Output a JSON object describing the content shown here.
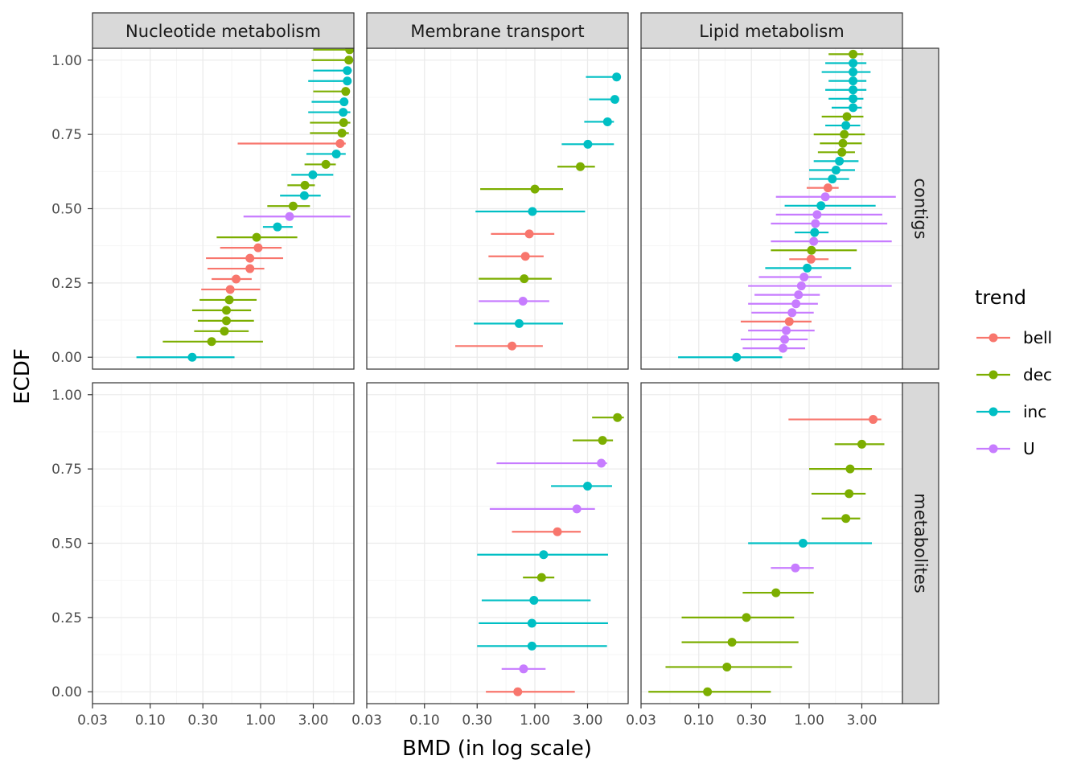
{
  "colors": {
    "bell": "#F8766D",
    "dec": "#7CAE00",
    "inc": "#00BFC4",
    "U": "#C77CFF",
    "strip_fill": "#D9D9D9",
    "grid_major": "#EBEBEB",
    "grid_minor": "#F5F5F5",
    "panel_border": "#333333"
  },
  "chart_data": {
    "type": "scatter",
    "subtype": "point-range faceted grid",
    "xlabel": "BMD (in log scale)",
    "ylabel": "ECDF",
    "x_scale": "log10",
    "xlim": [
      0.03,
      7
    ],
    "ylim": [
      -0.04,
      1.04
    ],
    "x_ticks": [
      0.03,
      0.1,
      0.3,
      1,
      3
    ],
    "x_tick_labels": [
      "0.03",
      "0.10",
      "0.30",
      "1.00",
      "3.00"
    ],
    "y_ticks": [
      0,
      0.25,
      0.5,
      0.75,
      1
    ],
    "y_tick_labels": [
      "0.00",
      "0.25",
      "0.50",
      "0.75",
      "1.00"
    ],
    "grid": true,
    "legend": {
      "title": "trend",
      "position": "right",
      "entries": [
        "bell",
        "dec",
        "inc",
        "U"
      ]
    },
    "columns": [
      "Nucleotide metabolism",
      "Membrane transport",
      "Lipid metabolism"
    ],
    "rows": [
      "contigs",
      "metabolites"
    ],
    "panels": [
      {
        "column": "Nucleotide metabolism",
        "row": "contigs",
        "points": [
          {
            "y": 0.0,
            "x": 0.24,
            "lo": 0.075,
            "hi": 0.58,
            "trend": "inc"
          },
          {
            "y": 0.0526,
            "x": 0.36,
            "lo": 0.13,
            "hi": 1.05,
            "trend": "dec"
          },
          {
            "y": 0.0877,
            "x": 0.47,
            "lo": 0.25,
            "hi": 0.78,
            "trend": "dec"
          },
          {
            "y": 0.1228,
            "x": 0.49,
            "lo": 0.27,
            "hi": 0.87,
            "trend": "dec"
          },
          {
            "y": 0.1579,
            "x": 0.49,
            "lo": 0.24,
            "hi": 0.82,
            "trend": "dec"
          },
          {
            "y": 0.193,
            "x": 0.52,
            "lo": 0.28,
            "hi": 0.92,
            "trend": "dec"
          },
          {
            "y": 0.2281,
            "x": 0.53,
            "lo": 0.29,
            "hi": 0.99,
            "trend": "bell"
          },
          {
            "y": 0.2632,
            "x": 0.6,
            "lo": 0.36,
            "hi": 0.83,
            "trend": "bell"
          },
          {
            "y": 0.2982,
            "x": 0.8,
            "lo": 0.33,
            "hi": 1.08,
            "trend": "bell"
          },
          {
            "y": 0.3333,
            "x": 0.8,
            "lo": 0.32,
            "hi": 1.6,
            "trend": "bell"
          },
          {
            "y": 0.3684,
            "x": 0.95,
            "lo": 0.43,
            "hi": 1.55,
            "trend": "bell"
          },
          {
            "y": 0.4035,
            "x": 0.92,
            "lo": 0.4,
            "hi": 2.15,
            "trend": "dec"
          },
          {
            "y": 0.4386,
            "x": 1.42,
            "lo": 1.05,
            "hi": 1.95,
            "trend": "inc"
          },
          {
            "y": 0.4737,
            "x": 1.83,
            "lo": 0.7,
            "hi": 6.5,
            "trend": "U"
          },
          {
            "y": 0.5088,
            "x": 1.97,
            "lo": 1.15,
            "hi": 2.8,
            "trend": "dec"
          },
          {
            "y": 0.5439,
            "x": 2.49,
            "lo": 1.5,
            "hi": 3.5,
            "trend": "inc"
          },
          {
            "y": 0.5789,
            "x": 2.52,
            "lo": 1.75,
            "hi": 3.1,
            "trend": "dec"
          },
          {
            "y": 0.614,
            "x": 2.97,
            "lo": 1.9,
            "hi": 4.55,
            "trend": "inc"
          },
          {
            "y": 0.6491,
            "x": 3.9,
            "lo": 2.5,
            "hi": 4.8,
            "trend": "dec"
          },
          {
            "y": 0.6842,
            "x": 4.85,
            "lo": 2.6,
            "hi": 5.9,
            "trend": "inc"
          },
          {
            "y": 0.7193,
            "x": 5.25,
            "lo": 0.62,
            "hi": 5.9,
            "trend": "bell"
          },
          {
            "y": 0.7544,
            "x": 5.45,
            "lo": 2.8,
            "hi": 6.3,
            "trend": "dec"
          },
          {
            "y": 0.7895,
            "x": 5.65,
            "lo": 2.8,
            "hi": 6.5,
            "trend": "dec"
          },
          {
            "y": 0.8246,
            "x": 5.6,
            "lo": 2.7,
            "hi": 6.5,
            "trend": "inc"
          },
          {
            "y": 0.8596,
            "x": 5.7,
            "lo": 2.9,
            "hi": 6.2,
            "trend": "inc"
          },
          {
            "y": 0.8947,
            "x": 5.9,
            "lo": 3.0,
            "hi": 6.3,
            "trend": "dec"
          },
          {
            "y": 0.9298,
            "x": 6.1,
            "lo": 2.7,
            "hi": 6.5,
            "trend": "inc"
          },
          {
            "y": 0.9649,
            "x": 6.1,
            "lo": 3.0,
            "hi": 6.7,
            "trend": "inc"
          },
          {
            "y": 1.0,
            "x": 6.3,
            "lo": 2.9,
            "hi": 6.6,
            "trend": "dec"
          },
          {
            "y": 1.0351,
            "x": 6.4,
            "lo": 3.0,
            "hi": 6.8,
            "trend": "dec"
          }
        ]
      },
      {
        "column": "Membrane transport",
        "row": "contigs",
        "points": [
          {
            "y": 0.0377,
            "x": 0.62,
            "lo": 0.19,
            "hi": 1.18,
            "trend": "bell"
          },
          {
            "y": 0.1132,
            "x": 0.72,
            "lo": 0.28,
            "hi": 1.8,
            "trend": "inc"
          },
          {
            "y": 0.1887,
            "x": 0.78,
            "lo": 0.31,
            "hi": 1.35,
            "trend": "U"
          },
          {
            "y": 0.2642,
            "x": 0.8,
            "lo": 0.31,
            "hi": 1.42,
            "trend": "dec"
          },
          {
            "y": 0.3396,
            "x": 0.82,
            "lo": 0.38,
            "hi": 1.2,
            "trend": "bell"
          },
          {
            "y": 0.4151,
            "x": 0.89,
            "lo": 0.4,
            "hi": 1.5,
            "trend": "bell"
          },
          {
            "y": 0.4906,
            "x": 0.95,
            "lo": 0.29,
            "hi": 2.85,
            "trend": "inc"
          },
          {
            "y": 0.566,
            "x": 1.0,
            "lo": 0.32,
            "hi": 1.8,
            "trend": "dec"
          },
          {
            "y": 0.6415,
            "x": 2.58,
            "lo": 1.6,
            "hi": 3.5,
            "trend": "dec"
          },
          {
            "y": 0.717,
            "x": 3.02,
            "lo": 1.75,
            "hi": 5.2,
            "trend": "inc"
          },
          {
            "y": 0.7925,
            "x": 4.55,
            "lo": 2.8,
            "hi": 5.2,
            "trend": "inc"
          },
          {
            "y": 0.8679,
            "x": 5.3,
            "lo": 3.1,
            "hi": 5.7,
            "trend": "inc"
          },
          {
            "y": 0.9434,
            "x": 5.5,
            "lo": 2.9,
            "hi": 5.7,
            "trend": "inc"
          }
        ]
      },
      {
        "column": "Lipid metabolism",
        "row": "contigs",
        "points": [
          {
            "y": 0.0,
            "x": 0.22,
            "lo": 0.065,
            "hi": 0.57,
            "trend": "inc"
          },
          {
            "y": 0.03,
            "x": 0.58,
            "lo": 0.25,
            "hi": 0.92,
            "trend": "U"
          },
          {
            "y": 0.06,
            "x": 0.6,
            "lo": 0.24,
            "hi": 0.97,
            "trend": "U"
          },
          {
            "y": 0.09,
            "x": 0.62,
            "lo": 0.28,
            "hi": 1.12,
            "trend": "U"
          },
          {
            "y": 0.12,
            "x": 0.66,
            "lo": 0.24,
            "hi": 1.05,
            "trend": "bell"
          },
          {
            "y": 0.15,
            "x": 0.7,
            "lo": 0.3,
            "hi": 1.1,
            "trend": "U"
          },
          {
            "y": 0.18,
            "x": 0.76,
            "lo": 0.28,
            "hi": 1.2,
            "trend": "U"
          },
          {
            "y": 0.21,
            "x": 0.8,
            "lo": 0.32,
            "hi": 1.25,
            "trend": "U"
          },
          {
            "y": 0.24,
            "x": 0.85,
            "lo": 0.28,
            "hi": 5.6,
            "trend": "U"
          },
          {
            "y": 0.27,
            "x": 0.9,
            "lo": 0.35,
            "hi": 1.3,
            "trend": "U"
          },
          {
            "y": 0.3,
            "x": 0.96,
            "lo": 0.4,
            "hi": 2.4,
            "trend": "inc"
          },
          {
            "y": 0.33,
            "x": 1.04,
            "lo": 0.66,
            "hi": 1.5,
            "trend": "bell"
          },
          {
            "y": 0.36,
            "x": 1.05,
            "lo": 0.45,
            "hi": 2.7,
            "trend": "dec"
          },
          {
            "y": 0.39,
            "x": 1.1,
            "lo": 0.45,
            "hi": 5.6,
            "trend": "U"
          },
          {
            "y": 0.42,
            "x": 1.12,
            "lo": 0.74,
            "hi": 1.5,
            "trend": "inc"
          },
          {
            "y": 0.45,
            "x": 1.14,
            "lo": 0.45,
            "hi": 5.1,
            "trend": "U"
          },
          {
            "y": 0.48,
            "x": 1.18,
            "lo": 0.5,
            "hi": 4.6,
            "trend": "U"
          },
          {
            "y": 0.51,
            "x": 1.28,
            "lo": 0.6,
            "hi": 4.0,
            "trend": "inc"
          },
          {
            "y": 0.54,
            "x": 1.4,
            "lo": 0.5,
            "hi": 6.1,
            "trend": "U"
          },
          {
            "y": 0.57,
            "x": 1.48,
            "lo": 0.95,
            "hi": 1.85,
            "trend": "bell"
          },
          {
            "y": 0.6,
            "x": 1.62,
            "lo": 1.0,
            "hi": 2.3,
            "trend": "inc"
          },
          {
            "y": 0.63,
            "x": 1.75,
            "lo": 1.0,
            "hi": 2.6,
            "trend": "inc"
          },
          {
            "y": 0.66,
            "x": 1.88,
            "lo": 1.1,
            "hi": 2.8,
            "trend": "inc"
          },
          {
            "y": 0.69,
            "x": 1.98,
            "lo": 1.2,
            "hi": 2.6,
            "trend": "dec"
          },
          {
            "y": 0.72,
            "x": 2.02,
            "lo": 1.25,
            "hi": 3.0,
            "trend": "dec"
          },
          {
            "y": 0.75,
            "x": 2.08,
            "lo": 1.1,
            "hi": 3.2,
            "trend": "dec"
          },
          {
            "y": 0.78,
            "x": 2.15,
            "lo": 1.4,
            "hi": 2.9,
            "trend": "inc"
          },
          {
            "y": 0.81,
            "x": 2.2,
            "lo": 1.3,
            "hi": 3.1,
            "trend": "dec"
          },
          {
            "y": 0.84,
            "x": 2.5,
            "lo": 1.6,
            "hi": 3.0,
            "trend": "inc"
          },
          {
            "y": 0.87,
            "x": 2.5,
            "lo": 1.5,
            "hi": 3.1,
            "trend": "inc"
          },
          {
            "y": 0.9,
            "x": 2.5,
            "lo": 1.4,
            "hi": 3.3,
            "trend": "inc"
          },
          {
            "y": 0.93,
            "x": 2.5,
            "lo": 1.5,
            "hi": 3.3,
            "trend": "inc"
          },
          {
            "y": 0.96,
            "x": 2.5,
            "lo": 1.3,
            "hi": 3.6,
            "trend": "inc"
          },
          {
            "y": 0.99,
            "x": 2.5,
            "lo": 1.4,
            "hi": 3.3,
            "trend": "inc"
          },
          {
            "y": 1.02,
            "x": 2.5,
            "lo": 1.5,
            "hi": 3.1,
            "trend": "dec"
          }
        ]
      },
      {
        "column": "Nucleotide metabolism",
        "row": "metabolites",
        "points": []
      },
      {
        "column": "Membrane transport",
        "row": "metabolites",
        "points": [
          {
            "y": 0.0,
            "x": 0.7,
            "lo": 0.36,
            "hi": 2.3,
            "trend": "bell"
          },
          {
            "y": 0.0769,
            "x": 0.79,
            "lo": 0.5,
            "hi": 1.25,
            "trend": "U"
          },
          {
            "y": 0.1538,
            "x": 0.94,
            "lo": 0.3,
            "hi": 4.5,
            "trend": "inc"
          },
          {
            "y": 0.2308,
            "x": 0.94,
            "lo": 0.31,
            "hi": 4.6,
            "trend": "inc"
          },
          {
            "y": 0.3077,
            "x": 0.98,
            "lo": 0.33,
            "hi": 3.2,
            "trend": "inc"
          },
          {
            "y": 0.3846,
            "x": 1.15,
            "lo": 0.78,
            "hi": 1.5,
            "trend": "dec"
          },
          {
            "y": 0.4615,
            "x": 1.2,
            "lo": 0.3,
            "hi": 4.6,
            "trend": "inc"
          },
          {
            "y": 0.5385,
            "x": 1.6,
            "lo": 0.62,
            "hi": 2.6,
            "trend": "bell"
          },
          {
            "y": 0.6154,
            "x": 2.4,
            "lo": 0.39,
            "hi": 3.5,
            "trend": "U"
          },
          {
            "y": 0.6923,
            "x": 3.0,
            "lo": 1.4,
            "hi": 5.0,
            "trend": "inc"
          },
          {
            "y": 0.7692,
            "x": 4.0,
            "lo": 0.45,
            "hi": 4.5,
            "trend": "U"
          },
          {
            "y": 0.8462,
            "x": 4.1,
            "lo": 2.2,
            "hi": 5.1,
            "trend": "dec"
          },
          {
            "y": 0.9231,
            "x": 5.6,
            "lo": 3.3,
            "hi": 6.4,
            "trend": "dec"
          }
        ]
      },
      {
        "column": "Lipid metabolism",
        "row": "metabolites",
        "points": [
          {
            "y": 0.0,
            "x": 0.12,
            "lo": 0.035,
            "hi": 0.45,
            "trend": "dec"
          },
          {
            "y": 0.0833,
            "x": 0.18,
            "lo": 0.05,
            "hi": 0.7,
            "trend": "dec"
          },
          {
            "y": 0.1667,
            "x": 0.2,
            "lo": 0.07,
            "hi": 0.8,
            "trend": "dec"
          },
          {
            "y": 0.25,
            "x": 0.27,
            "lo": 0.07,
            "hi": 0.73,
            "trend": "dec"
          },
          {
            "y": 0.3333,
            "x": 0.5,
            "lo": 0.25,
            "hi": 1.1,
            "trend": "dec"
          },
          {
            "y": 0.4167,
            "x": 0.75,
            "lo": 0.45,
            "hi": 1.1,
            "trend": "U"
          },
          {
            "y": 0.5,
            "x": 0.88,
            "lo": 0.28,
            "hi": 3.7,
            "trend": "inc"
          },
          {
            "y": 0.5833,
            "x": 2.15,
            "lo": 1.3,
            "hi": 2.9,
            "trend": "dec"
          },
          {
            "y": 0.6667,
            "x": 2.3,
            "lo": 1.05,
            "hi": 3.25,
            "trend": "dec"
          },
          {
            "y": 0.75,
            "x": 2.35,
            "lo": 1.0,
            "hi": 3.7,
            "trend": "dec"
          },
          {
            "y": 0.8333,
            "x": 3.0,
            "lo": 1.7,
            "hi": 4.8,
            "trend": "dec"
          },
          {
            "y": 0.9167,
            "x": 3.8,
            "lo": 0.65,
            "hi": 4.5,
            "trend": "bell"
          }
        ]
      }
    ]
  }
}
